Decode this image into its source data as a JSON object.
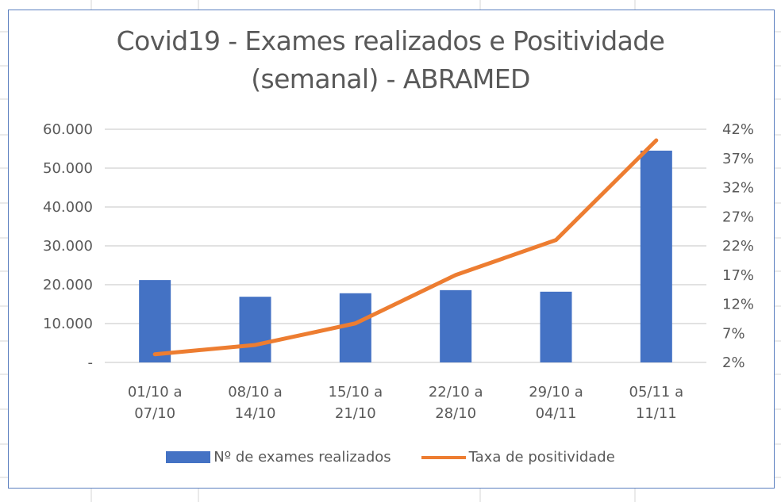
{
  "title": {
    "line1": "Covid19 - Exames realizados e Positividade",
    "line2": "(semanal) - ABRAMED"
  },
  "colors": {
    "bars": "#4472C4",
    "line": "#ED7D31",
    "gridline": "#d9d9d9",
    "text": "#595959",
    "frame": "#5b7fbf"
  },
  "axes": {
    "left_ticks": [
      "60.000",
      "50.000",
      "40.000",
      "30.000",
      "20.000",
      "10.000",
      "-"
    ],
    "right_ticks": [
      "42%",
      "37%",
      "32%",
      "27%",
      "22%",
      "17%",
      "12%",
      "7%",
      "2%"
    ],
    "categories": [
      {
        "line1": "01/10 a",
        "line2": "07/10"
      },
      {
        "line1": "08/10 a",
        "line2": "14/10"
      },
      {
        "line1": "15/10 a",
        "line2": "21/10"
      },
      {
        "line1": "22/10 a",
        "line2": "28/10"
      },
      {
        "line1": "29/10 a",
        "line2": "04/11"
      },
      {
        "line1": "05/11 a",
        "line2": "11/11"
      }
    ]
  },
  "legend": {
    "bars_label": "Nº de exames realizados",
    "line_label": "Taxa de positividade"
  },
  "chart_data": {
    "type": "bar",
    "title": "Covid19 - Exames realizados e Positividade (semanal) - ABRAMED",
    "categories": [
      "01/10 a 07/10",
      "08/10 a 14/10",
      "15/10 a 21/10",
      "22/10 a 28/10",
      "29/10 a 04/11",
      "05/11 a 11/11"
    ],
    "series": [
      {
        "name": "Nº de exames realizados",
        "type": "bar",
        "axis": "left",
        "values": [
          21200,
          16900,
          17800,
          18600,
          18200,
          54500
        ]
      },
      {
        "name": "Taxa de positividade",
        "type": "line",
        "axis": "right",
        "values": [
          3.4,
          5.0,
          8.7,
          17.0,
          23.0,
          40.1
        ],
        "unit": "%"
      }
    ],
    "xlabel": "",
    "ylabel": "",
    "ylim": [
      0,
      60000
    ],
    "y2lim": [
      2,
      42
    ],
    "grid": true,
    "legend_position": "bottom"
  }
}
